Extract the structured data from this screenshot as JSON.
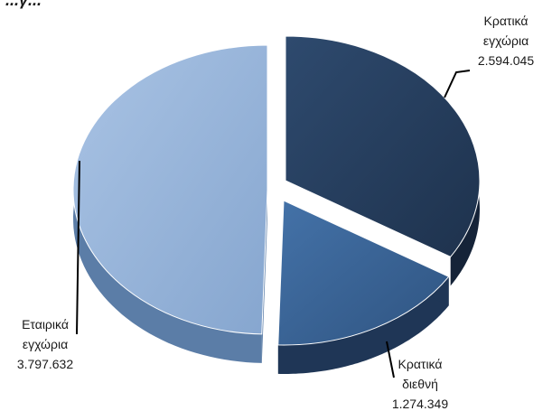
{
  "title_fragment": "...γ...",
  "chart_data": {
    "type": "pie",
    "style": "3d-exploded",
    "labels": [
      "Κρατικά εγχώρια",
      "Κρατικά διεθνή",
      "Εταιρικά εγχώρια"
    ],
    "values": [
      2594045,
      1274349,
      3797632
    ],
    "value_labels": [
      "2.594.045",
      "1.274.349",
      "3.797.632"
    ],
    "label_lines": [
      [
        "Κρατικά",
        "εγχώρια",
        "2.594.045"
      ],
      [
        "Κρατικά",
        "διεθνή",
        "1.274.349"
      ],
      [
        "Εταιρικά",
        "εγχώρια",
        "3.797.632"
      ]
    ],
    "colors": [
      "#263f5f",
      "#3b6598",
      "#94b3da"
    ],
    "side_colors": [
      "#152338",
      "#1f3656",
      "#5b7da7"
    ],
    "legend": "none"
  }
}
